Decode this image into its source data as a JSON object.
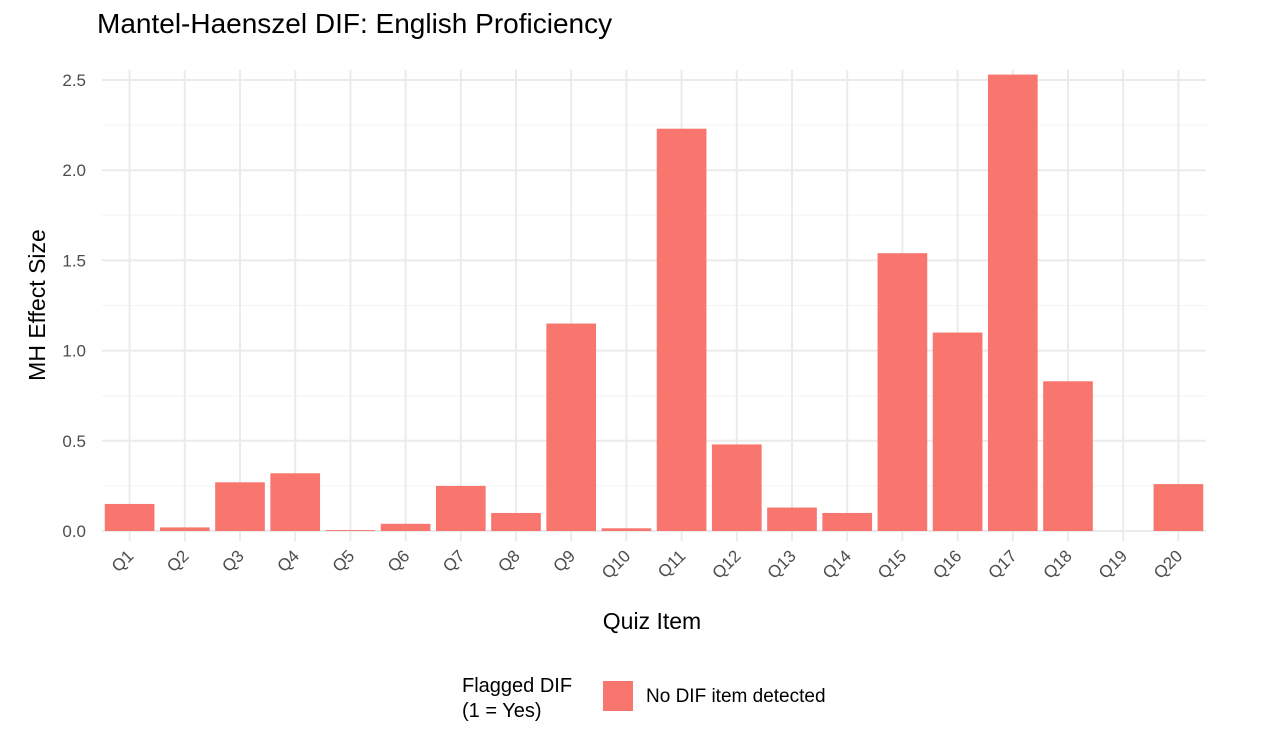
{
  "chart_data": {
    "type": "bar",
    "title": "Mantel-Haenszel DIF:  English Proficiency",
    "xlabel": "Quiz Item",
    "ylabel": "MH Effect Size",
    "categories": [
      "Q1",
      "Q2",
      "Q3",
      "Q4",
      "Q5",
      "Q6",
      "Q7",
      "Q8",
      "Q9",
      "Q10",
      "Q11",
      "Q12",
      "Q13",
      "Q14",
      "Q15",
      "Q16",
      "Q17",
      "Q18",
      "Q19",
      "Q20"
    ],
    "values": [
      0.15,
      0.02,
      0.27,
      0.32,
      0.005,
      0.04,
      0.25,
      0.1,
      1.15,
      0.015,
      2.23,
      0.48,
      0.13,
      0.1,
      1.54,
      1.1,
      2.53,
      0.83,
      0.0,
      0.26
    ],
    "ylim": [
      0,
      2.5
    ],
    "yticks": [
      "0.0",
      "0.5",
      "1.0",
      "1.5",
      "2.0",
      "2.5"
    ],
    "ytick_values": [
      0,
      0.5,
      1.0,
      1.5,
      2.0,
      2.5
    ],
    "grid": true,
    "bar_color": "#f8766d",
    "legend": {
      "title_line1": "Flagged DIF",
      "title_line2": "(1 = Yes)",
      "entries": [
        {
          "label": "No DIF item detected",
          "color": "#f8766d"
        }
      ],
      "placement": "bottom"
    }
  }
}
